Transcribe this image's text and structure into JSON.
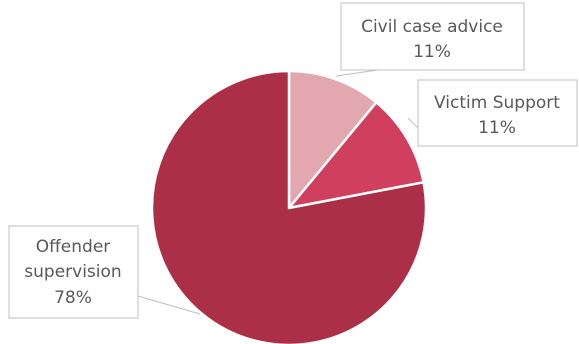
{
  "chart_data": {
    "type": "pie",
    "slices": [
      {
        "name": "Civil case advice",
        "value": 11,
        "label": "11%",
        "color": "#e3a7b0"
      },
      {
        "name": "Victim Support",
        "value": 11,
        "label": "11%",
        "color": "#d13f5f"
      },
      {
        "name": "Offender supervision",
        "value": 78,
        "label": "78%",
        "color": "#ac2f48"
      }
    ],
    "legend": "none",
    "data_labels": "callouts with category name and percentage"
  }
}
